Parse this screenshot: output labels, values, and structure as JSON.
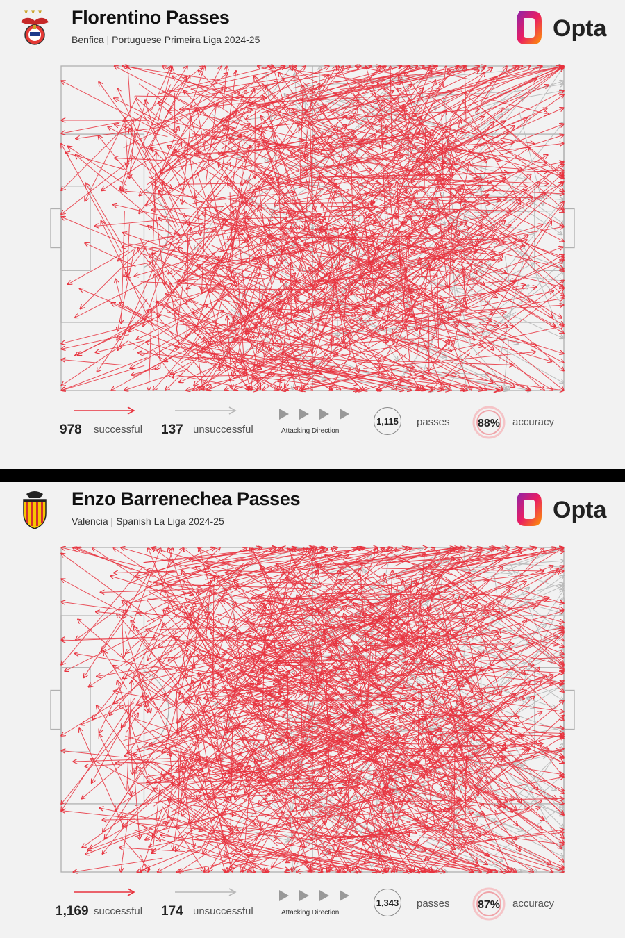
{
  "colors": {
    "successful": "#e8333e",
    "unsuccessful": "#b8b8b8",
    "pitch_line": "#b0b0b0",
    "accuracy_ring": "#e8333e"
  },
  "panels": [
    {
      "crest_icon": "benfica-crest-icon",
      "title": "Florentino Passes",
      "subtitle": "Benfica | Portuguese Primeira Liga 2024-25",
      "brand": "Opta",
      "legend": {
        "successful_count": "978",
        "successful_label": "successful",
        "unsuccessful_count": "137",
        "unsuccessful_label": "unsuccessful",
        "attacking_direction_label": "Attacking Direction",
        "total_passes": "1,115",
        "passes_label": "passes",
        "accuracy": "88%",
        "accuracy_label": "accuracy"
      }
    },
    {
      "crest_icon": "valencia-crest-icon",
      "title": "Enzo Barrenechea Passes",
      "subtitle": "Valencia | Spanish La Liga 2024-25",
      "brand": "Opta",
      "legend": {
        "successful_count": "1,169",
        "successful_label": "successful",
        "unsuccessful_count": "174",
        "unsuccessful_label": "unsuccessful",
        "attacking_direction_label": "Attacking Direction",
        "total_passes": "1,343",
        "passes_label": "passes",
        "accuracy": "87%",
        "accuracy_label": "accuracy"
      }
    }
  ],
  "chart_data": [
    {
      "type": "scatter",
      "subtype": "pass-map",
      "attacking_direction": "left-to-right",
      "x_range": [
        0,
        100
      ],
      "y_range": [
        0,
        100
      ],
      "series": [
        {
          "name": "successful",
          "count": 978
        },
        {
          "name": "unsuccessful",
          "count": 137
        }
      ],
      "total": 1115,
      "accuracy_pct": 88
    },
    {
      "type": "scatter",
      "subtype": "pass-map",
      "attacking_direction": "left-to-right",
      "x_range": [
        0,
        100
      ],
      "y_range": [
        0,
        100
      ],
      "series": [
        {
          "name": "successful",
          "count": 1169
        },
        {
          "name": "unsuccessful",
          "count": 174
        }
      ],
      "total": 1343,
      "accuracy_pct": 87
    }
  ]
}
